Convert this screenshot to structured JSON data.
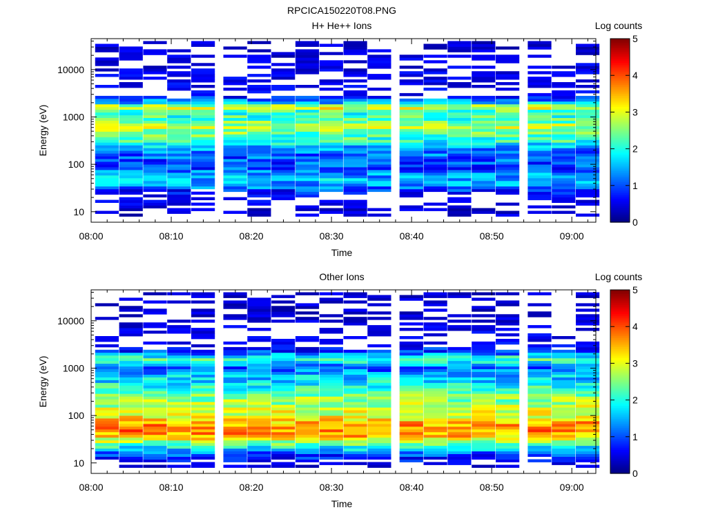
{
  "figure": {
    "title": "RPCICA150220T08.PNG"
  },
  "chart_data": [
    {
      "type": "heatmap",
      "title": "H+ He++ Ions",
      "xlabel": "Time",
      "ylabel": "Energy (eV)",
      "yscale": "log",
      "ylim": [
        6,
        45000
      ],
      "xlim": [
        "08:00",
        "09:03"
      ],
      "x_ticks": [
        "08:00",
        "08:10",
        "08:20",
        "08:30",
        "08:40",
        "08:50",
        "09:00"
      ],
      "y_ticks": [
        "10",
        "100",
        "1000",
        "10000"
      ],
      "time_bins": [
        "08:02",
        "08:05",
        "08:08",
        "08:11",
        "08:14",
        "08:18",
        "08:21",
        "08:24",
        "08:27",
        "08:30",
        "08:33",
        "08:36",
        "08:40",
        "08:43",
        "08:46",
        "08:49",
        "08:52",
        "08:56",
        "08:59",
        "09:02"
      ],
      "colorbar": {
        "label": "Log counts",
        "range": [
          0,
          5
        ],
        "ticks": [
          "0",
          "1",
          "2",
          "3",
          "4",
          "5"
        ],
        "colormap": "jet"
      },
      "profile_log_counts": [
        {
          "energy_eV": 11,
          "value": 0.1
        },
        {
          "energy_eV": 22,
          "value": 0.3
        },
        {
          "energy_eV": 35,
          "value": 1.3
        },
        {
          "energy_eV": 50,
          "value": 1.6
        },
        {
          "energy_eV": 80,
          "value": 1.0
        },
        {
          "energy_eV": 130,
          "value": 1.0
        },
        {
          "energy_eV": 200,
          "value": 1.3
        },
        {
          "energy_eV": 300,
          "value": 2.0
        },
        {
          "energy_eV": 450,
          "value": 2.4
        },
        {
          "energy_eV": 650,
          "value": 2.8
        },
        {
          "energy_eV": 900,
          "value": 2.2
        },
        {
          "energy_eV": 1300,
          "value": 2.1
        },
        {
          "energy_eV": 1600,
          "value": 3.2
        },
        {
          "energy_eV": 2000,
          "value": 1.6
        },
        {
          "energy_eV": 3000,
          "value": 0.3
        },
        {
          "energy_eV": 8000,
          "value": 0.2
        },
        {
          "energy_eV": 35000,
          "value": 0.1
        }
      ]
    },
    {
      "type": "heatmap",
      "title": "Other Ions",
      "xlabel": "Time",
      "ylabel": "Energy (eV)",
      "yscale": "log",
      "ylim": [
        6,
        45000
      ],
      "xlim": [
        "08:00",
        "09:03"
      ],
      "x_ticks": [
        "08:00",
        "08:10",
        "08:20",
        "08:30",
        "08:40",
        "08:50",
        "09:00"
      ],
      "y_ticks": [
        "10",
        "100",
        "1000",
        "10000"
      ],
      "time_bins": [
        "08:02",
        "08:05",
        "08:08",
        "08:11",
        "08:14",
        "08:18",
        "08:21",
        "08:24",
        "08:27",
        "08:30",
        "08:33",
        "08:36",
        "08:40",
        "08:43",
        "08:46",
        "08:49",
        "08:52",
        "08:56",
        "08:59",
        "09:02"
      ],
      "colorbar": {
        "label": "Log counts",
        "range": [
          0,
          5
        ],
        "ticks": [
          "0",
          "1",
          "2",
          "3",
          "4",
          "5"
        ],
        "colormap": "jet"
      },
      "profile_log_counts": [
        {
          "energy_eV": 9,
          "value": 0.1
        },
        {
          "energy_eV": 17,
          "value": 1.2
        },
        {
          "energy_eV": 25,
          "value": 2.4
        },
        {
          "energy_eV": 35,
          "value": 3.3
        },
        {
          "energy_eV": 50,
          "value": 3.8
        },
        {
          "energy_eV": 70,
          "value": 3.5
        },
        {
          "energy_eV": 100,
          "value": 3.0
        },
        {
          "energy_eV": 150,
          "value": 2.8
        },
        {
          "energy_eV": 250,
          "value": 2.5
        },
        {
          "energy_eV": 400,
          "value": 2.0
        },
        {
          "energy_eV": 700,
          "value": 1.6
        },
        {
          "energy_eV": 1000,
          "value": 1.0
        },
        {
          "energy_eV": 1600,
          "value": 2.3
        },
        {
          "energy_eV": 2200,
          "value": 0.9
        },
        {
          "energy_eV": 3200,
          "value": 0.3
        },
        {
          "energy_eV": 16000,
          "value": 0.1
        }
      ]
    }
  ]
}
